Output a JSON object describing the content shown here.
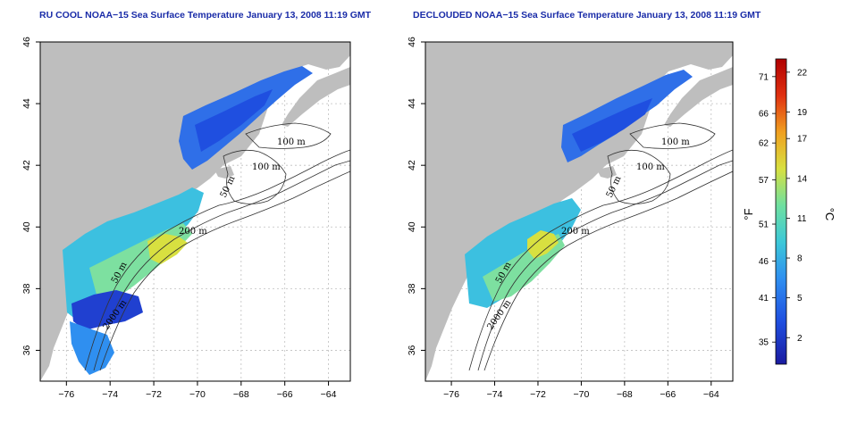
{
  "panels": [
    {
      "title": "RU COOL NOAA−15 Sea Surface Temperature January 13, 2008 11:19 GMT",
      "contour_labels": [
        "100 m",
        "100 m",
        "50 m",
        "200 m",
        "50 m",
        "2000 m"
      ]
    },
    {
      "title": "DECLOUDED NOAA−15 Sea Surface Temperature January 13, 2008 11:19 GMT",
      "contour_labels": [
        "100 m",
        "100 m",
        "50 m",
        "200 m",
        "50 m",
        "2000 m"
      ]
    }
  ],
  "axes": {
    "lon_ticks": [
      "−76",
      "−74",
      "−72",
      "−70",
      "−68",
      "−66",
      "−64"
    ],
    "lat_ticks": [
      "36",
      "38",
      "40",
      "42",
      "44",
      "46"
    ],
    "lon_values": [
      -76,
      -74,
      -72,
      -70,
      -68,
      -66,
      -64
    ],
    "lat_values": [
      36,
      38,
      40,
      42,
      44,
      46
    ],
    "lon_range": [
      -77.2,
      -63.0
    ],
    "lat_range": [
      35.0,
      46.0
    ]
  },
  "colorbar": {
    "fahrenheit_label": "°F",
    "celsius_label": "°C",
    "fahrenheit_ticks": [
      "35",
      "41",
      "46",
      "51",
      "57",
      "62",
      "66",
      "71"
    ],
    "celsius_ticks": [
      "2",
      "5",
      "8",
      "11",
      "14",
      "17",
      "19",
      "22"
    ],
    "celsius_range": [
      0,
      23
    ],
    "colors": [
      "#1a1aa0",
      "#1f4fe0",
      "#2f8ff0",
      "#3cc8d8",
      "#6fe0a0",
      "#d8e040",
      "#f0a020",
      "#e03010",
      "#b00000"
    ]
  },
  "colors": {
    "land": "#bebebe",
    "title": "#1a2ca8",
    "grid": "#bfbfbf"
  }
}
